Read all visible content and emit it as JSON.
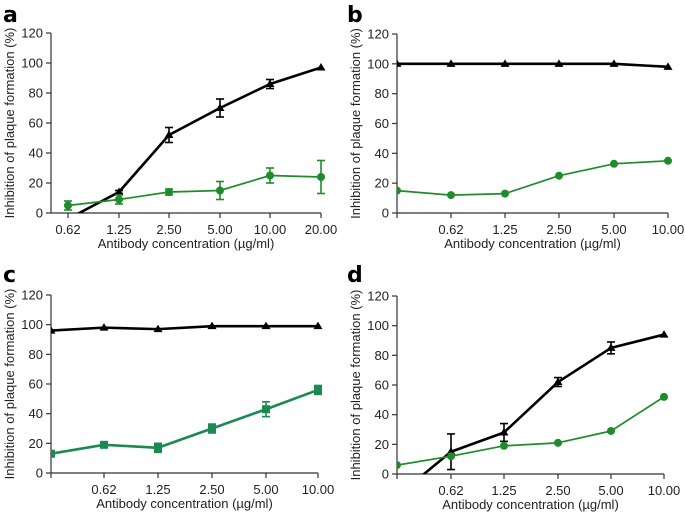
{
  "colors": {
    "black_series": "#000000",
    "green_series": "#1e8c2a",
    "green_series_c": "#1a8a50"
  },
  "chart_data": [
    {
      "panel": "a",
      "type": "line",
      "title": "",
      "xlabel": "Antibody concentration (µg/ml)",
      "ylabel": "Inhibition of plaque formation (%)",
      "ylim": [
        0,
        120
      ],
      "yticks": [
        "0",
        "20",
        "40",
        "60",
        "80",
        "100",
        "120"
      ],
      "categories": [
        "0.62",
        "1.25",
        "2.50",
        "5.00",
        "10.00",
        "20.00"
      ],
      "series": [
        {
          "name": "black",
          "marker": "triangle",
          "color_key": "black_series",
          "values": [
            -4,
            14,
            52,
            70,
            86,
            97
          ],
          "errors": [
            0,
            1,
            5,
            6,
            3,
            0
          ]
        },
        {
          "name": "green",
          "marker": "circle",
          "color_key": "green_series",
          "values": [
            5,
            9,
            14,
            15,
            25,
            24
          ],
          "errors": [
            3,
            3,
            2,
            6,
            5,
            11
          ]
        }
      ]
    },
    {
      "panel": "b",
      "type": "line",
      "title": "",
      "xlabel": "Antibody concentration (µg/ml)",
      "ylabel": "Inhibition of plaque formation (%)",
      "ylim": [
        0,
        120
      ],
      "yticks": [
        "0",
        "20",
        "40",
        "60",
        "80",
        "100",
        "120"
      ],
      "categories": [
        "",
        "0.62",
        "1.25",
        "2.50",
        "5.00",
        "10.00"
      ],
      "series": [
        {
          "name": "black",
          "marker": "triangle",
          "color_key": "black_series",
          "values": [
            100,
            100,
            100,
            100,
            100,
            98
          ],
          "errors": [
            0,
            0,
            0,
            0,
            0,
            0
          ]
        },
        {
          "name": "green",
          "marker": "circle",
          "color_key": "green_series",
          "values": [
            15,
            12,
            13,
            25,
            33,
            35
          ],
          "errors": [
            0,
            0,
            0,
            0,
            0,
            0
          ]
        }
      ]
    },
    {
      "panel": "c",
      "type": "line",
      "title": "",
      "xlabel": "Antibody concentration (µg/ml)",
      "ylabel": "Inhibition of plaque formation (%)",
      "ylim": [
        0,
        120
      ],
      "yticks": [
        "0",
        "20",
        "40",
        "60",
        "80",
        "100",
        "120"
      ],
      "categories": [
        "",
        "0.62",
        "1.25",
        "2.50",
        "5.00",
        "10.00"
      ],
      "series": [
        {
          "name": "black",
          "marker": "triangle",
          "color_key": "black_series",
          "values": [
            96,
            98,
            97,
            99,
            99,
            99
          ],
          "errors": [
            0,
            0,
            0,
            0,
            0,
            0
          ]
        },
        {
          "name": "green",
          "marker": "square",
          "color_key": "green_series_c",
          "values": [
            13,
            19,
            17,
            30,
            43,
            56
          ],
          "errors": [
            1,
            1,
            3,
            3,
            5,
            3
          ]
        }
      ]
    },
    {
      "panel": "d",
      "type": "line",
      "title": "",
      "xlabel": "Antibody concentration (µg/ml)",
      "ylabel": "Inhibition of plaque formation (%)",
      "ylim": [
        0,
        120
      ],
      "yticks": [
        "0",
        "20",
        "40",
        "60",
        "80",
        "100",
        "120"
      ],
      "categories": [
        "",
        "0.62",
        "1.25",
        "2.50",
        "5.00",
        "10.00"
      ],
      "series": [
        {
          "name": "black",
          "marker": "triangle",
          "color_key": "black_series",
          "values": [
            -15,
            15,
            28,
            62,
            85,
            94
          ],
          "errors": [
            0,
            12,
            6,
            3,
            4,
            0
          ]
        },
        {
          "name": "green",
          "marker": "circle",
          "color_key": "green_series",
          "values": [
            6,
            12,
            19,
            21,
            29,
            52
          ],
          "errors": [
            0,
            0,
            0,
            0,
            0,
            0
          ]
        }
      ]
    }
  ]
}
